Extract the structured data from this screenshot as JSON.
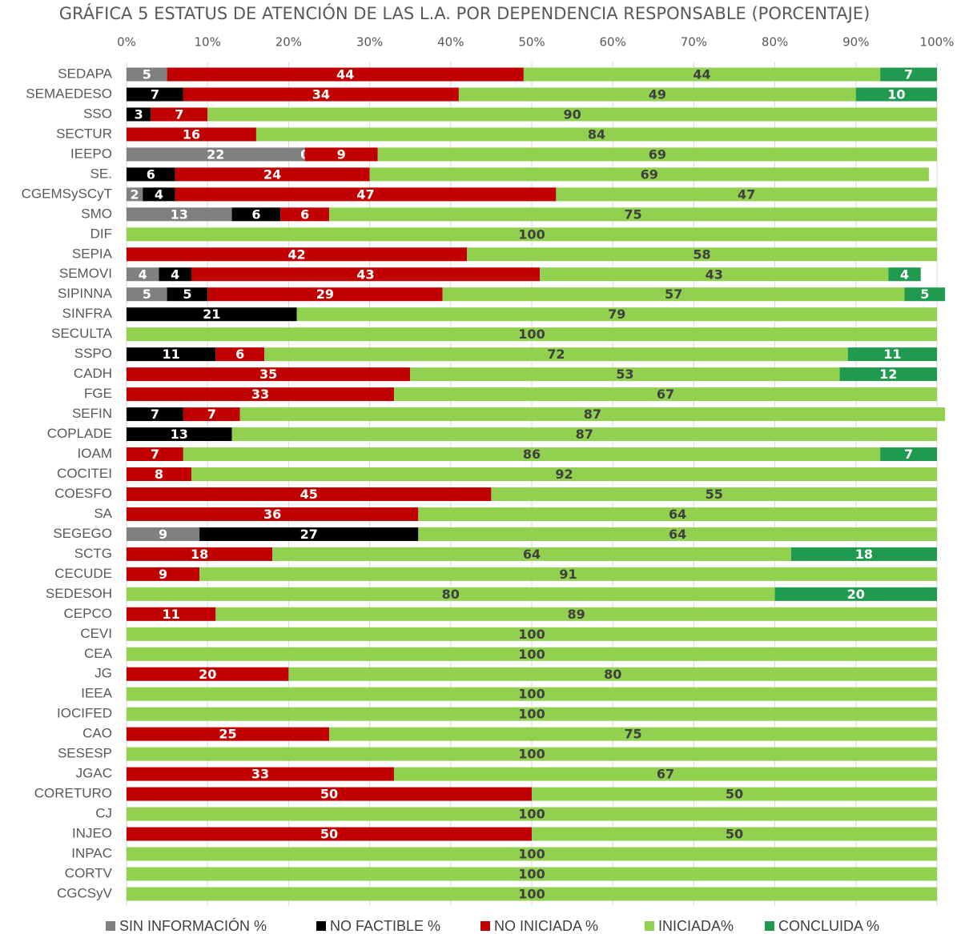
{
  "chart_data": {
    "type": "stacked_barh",
    "title": "GRÁFICA 5 ESTATUS DE ATENCIÓN DE LAS L.A. POR DEPENDENCIA RESPONSABLE (PORCENTAJE)",
    "categories": [
      "SEDAPA",
      "SEMAEDESO",
      "SSO",
      "SECTUR",
      "IEEPO",
      "SE.",
      "CGEMSySCyT",
      "SMO",
      "DIF",
      "SEPIA",
      "SEMOVI",
      "SIPINNA",
      "SINFRA",
      "SECULTA",
      "SSPO",
      "CADH",
      "FGE",
      "SEFIN",
      "COPLADE",
      "IOAM",
      "COCITEI",
      "COESFO",
      "SA",
      "SEGEGO",
      "SCTG",
      "CECUDE",
      "SEDESOH",
      "CEPCO",
      "CEVI",
      "CEA",
      "JG",
      "IEEA",
      "IOCIFED",
      "CAO",
      "SESESP",
      "JGAC",
      "CORETURO",
      "CJ",
      "INJEO",
      "INPAC",
      "CORTV",
      "CGCSyV"
    ],
    "series": [
      {
        "name": "SIN INFORMACIÓN %",
        "color": "#808080",
        "values": [
          5,
          null,
          null,
          null,
          22,
          null,
          2,
          13,
          null,
          null,
          4,
          5,
          null,
          null,
          null,
          null,
          null,
          null,
          null,
          null,
          null,
          null,
          null,
          9,
          null,
          null,
          null,
          null,
          null,
          null,
          null,
          null,
          null,
          null,
          null,
          null,
          null,
          null,
          null,
          null,
          null,
          null
        ]
      },
      {
        "name": "NO FACTIBLE %",
        "color": "#000000",
        "values": [
          null,
          7,
          3,
          null,
          0,
          6,
          4,
          6,
          null,
          null,
          4,
          5,
          21,
          null,
          11,
          null,
          null,
          7,
          13,
          null,
          null,
          null,
          null,
          27,
          null,
          null,
          null,
          null,
          null,
          null,
          null,
          null,
          null,
          null,
          null,
          null,
          null,
          null,
          null,
          null,
          null,
          null
        ]
      },
      {
        "name": "NO INICIADA %",
        "color": "#c00000",
        "values": [
          44,
          34,
          7,
          16,
          9,
          24,
          47,
          6,
          null,
          42,
          43,
          29,
          null,
          null,
          6,
          35,
          33,
          7,
          null,
          7,
          8,
          45,
          36,
          null,
          18,
          9,
          null,
          11,
          null,
          null,
          20,
          null,
          null,
          25,
          null,
          33,
          50,
          null,
          50,
          null,
          null,
          null
        ]
      },
      {
        "name": "INICIADA%",
        "color": "#92d050",
        "values": [
          44,
          49,
          90,
          84,
          69,
          69,
          47,
          75,
          100,
          58,
          43,
          57,
          79,
          100,
          72,
          53,
          67,
          87,
          87,
          86,
          92,
          55,
          64,
          64,
          64,
          91,
          80,
          89,
          100,
          100,
          80,
          100,
          100,
          75,
          100,
          67,
          50,
          100,
          50,
          100,
          100,
          100
        ]
      },
      {
        "name": "CONCLUIDA %",
        "color": "#1f9a4f",
        "values": [
          7,
          10,
          null,
          null,
          null,
          null,
          null,
          null,
          null,
          null,
          4,
          5,
          null,
          null,
          11,
          12,
          null,
          null,
          null,
          7,
          null,
          null,
          null,
          null,
          18,
          null,
          20,
          null,
          null,
          null,
          null,
          null,
          null,
          null,
          null,
          null,
          null,
          null,
          null,
          null,
          null,
          null
        ]
      }
    ],
    "xlim": [
      0,
      100
    ],
    "xticks": [
      {
        "value": 0,
        "label": "0%"
      },
      {
        "value": 10,
        "label": "10%"
      },
      {
        "value": 20,
        "label": "20%"
      },
      {
        "value": 30,
        "label": "30%"
      },
      {
        "value": 40,
        "label": "40%"
      },
      {
        "value": 50,
        "label": "50%"
      },
      {
        "value": 60,
        "label": "60%"
      },
      {
        "value": 70,
        "label": "70%"
      },
      {
        "value": 80,
        "label": "80%"
      },
      {
        "value": 90,
        "label": "90%"
      },
      {
        "value": 100,
        "label": "100%"
      }
    ],
    "grid": true,
    "legend": "bottom"
  }
}
